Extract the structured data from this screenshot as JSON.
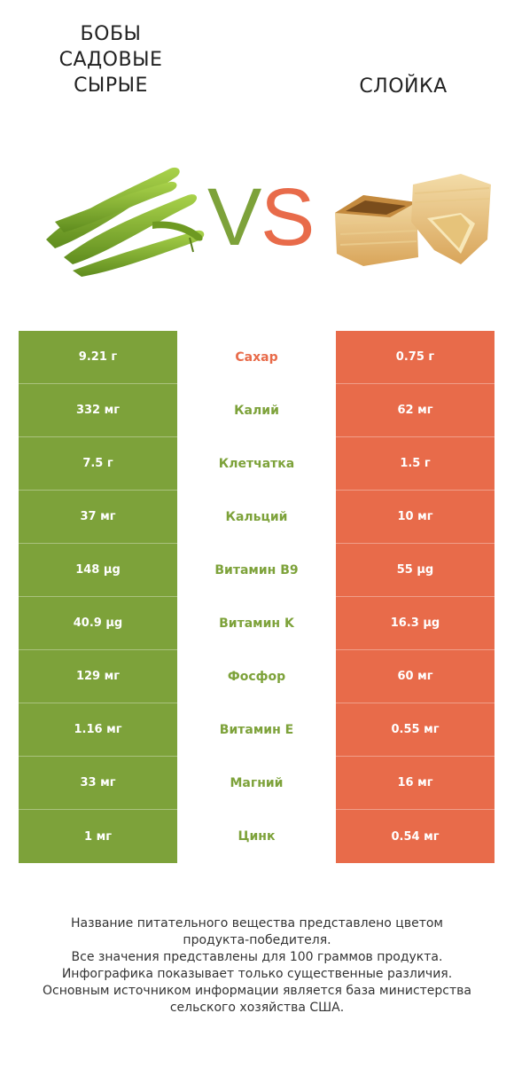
{
  "header": {
    "left_title": "БОБЫ САДОВЫЕ СЫРЫЕ",
    "right_title": "СЛОЙКА",
    "vs_v": "V",
    "vs_s": "S"
  },
  "colors": {
    "left_product": "#7da23a",
    "right_product": "#e86b4a"
  },
  "rows": [
    {
      "nutrient": "Сахар",
      "left": "9.21 г",
      "right": "0.75 г",
      "winner": "right"
    },
    {
      "nutrient": "Калий",
      "left": "332 мг",
      "right": "62 мг",
      "winner": "left"
    },
    {
      "nutrient": "Клетчатка",
      "left": "7.5 г",
      "right": "1.5 г",
      "winner": "left"
    },
    {
      "nutrient": "Кальций",
      "left": "37 мг",
      "right": "10 мг",
      "winner": "left"
    },
    {
      "nutrient": "Витамин B9",
      "left": "148 µg",
      "right": "55 µg",
      "winner": "left"
    },
    {
      "nutrient": "Витамин K",
      "left": "40.9 µg",
      "right": "16.3 µg",
      "winner": "left"
    },
    {
      "nutrient": "Фосфор",
      "left": "129 мг",
      "right": "60 мг",
      "winner": "left"
    },
    {
      "nutrient": "Витамин E",
      "left": "1.16 мг",
      "right": "0.55 мг",
      "winner": "left"
    },
    {
      "nutrient": "Магний",
      "left": "33 мг",
      "right": "16 мг",
      "winner": "left"
    },
    {
      "nutrient": "Цинк",
      "left": "1 мг",
      "right": "0.54 мг",
      "winner": "left"
    }
  ],
  "footer": {
    "line1": "Название питательного вещества представлено цветом",
    "line2": "продукта-победителя.",
    "line3": "Все значения представлены для 100 граммов продукта.",
    "line4": "Инфографика показывает только существенные различия.",
    "line5": "Основным источником информации является база министерства",
    "line6": "сельского хозяйства США."
  }
}
